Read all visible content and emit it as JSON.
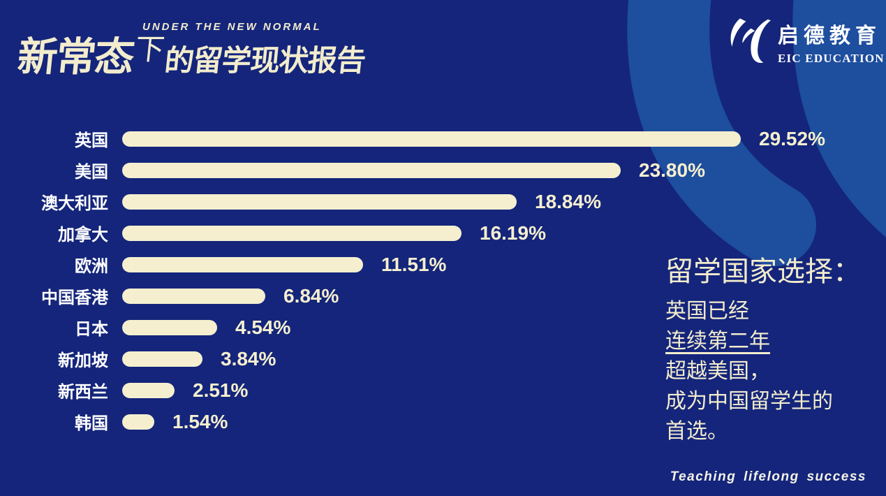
{
  "header": {
    "title_en": "UNDER THE NEW NORMAL",
    "title_cn_part1": "新常态",
    "title_cn_part2": "下",
    "title_cn_part3": "的留学现状报告"
  },
  "brand": {
    "name_cn": "启德教育",
    "name_en": "EIC EDUCATION",
    "icon": "eic-swoosh-logo"
  },
  "chart_data": {
    "type": "bar",
    "orientation": "horizontal",
    "title": "",
    "categories": [
      "英国",
      "美国",
      "澳大利亚",
      "加拿大",
      "欧洲",
      "中国香港",
      "日本",
      "新加坡",
      "新西兰",
      "韩国"
    ],
    "values": [
      29.52,
      23.8,
      18.84,
      16.19,
      11.51,
      6.84,
      4.54,
      3.84,
      2.51,
      1.54
    ],
    "value_labels": [
      "29.52%",
      "23.80%",
      "18.84%",
      "16.19%",
      "11.51%",
      "6.84%",
      "4.54%",
      "3.84%",
      "2.51%",
      "1.54%"
    ],
    "xlim": [
      0,
      30
    ],
    "grid": false,
    "legend": "none",
    "bar_color": "#f5efcf",
    "category_label_color": "#ffffff",
    "value_label_color": "#f5efcf"
  },
  "annotation": {
    "heading": "留学国家选择：",
    "lines": [
      "英国已经",
      "连续第二年",
      "超越美国，",
      "成为中国留学生的",
      "首选。"
    ],
    "underline_index": 1
  },
  "footer": {
    "tagline": "Teaching lifelong success"
  },
  "colors": {
    "background": "#14257b",
    "swoosh": "#1e4e9e",
    "cream": "#f5efcf",
    "white": "#ffffff"
  }
}
